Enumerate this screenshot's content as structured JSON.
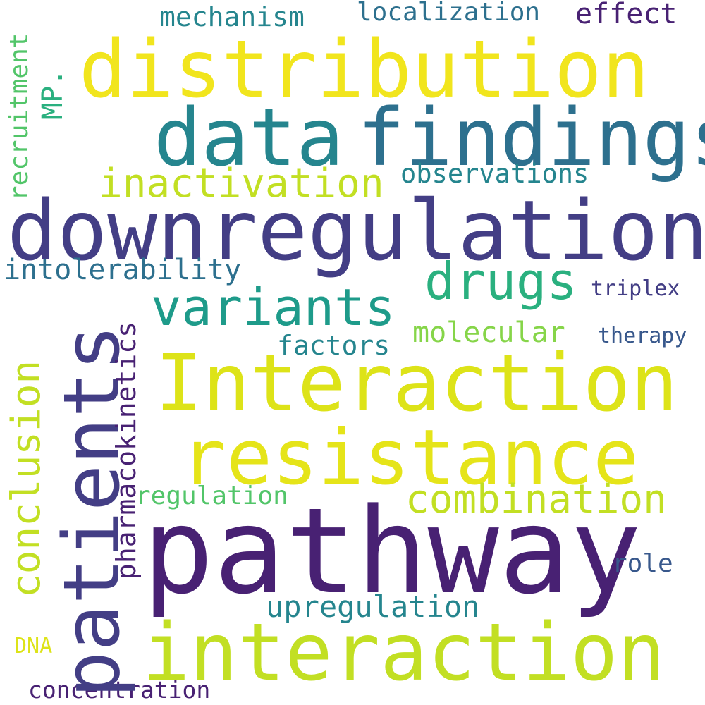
{
  "palette": {
    "yellow": "#f1e51d",
    "lime": "#c2df23",
    "green_light": "#86d549",
    "green": "#52c569",
    "teal_green": "#2ab07f",
    "teal": "#1e9b8a",
    "blue_teal": "#25858e",
    "blue": "#2d708e",
    "blue_dark": "#38588c",
    "indigo": "#433e85",
    "purple": "#482173"
  },
  "words": {
    "distribution": "distribution",
    "data": "data",
    "findings": "findings",
    "downregulation": "downregulation",
    "Interaction": "Interaction",
    "pathway": "pathway",
    "interaction": "interaction",
    "resistance": "resistance",
    "patients": "patients",
    "variants": "variants",
    "drugs": "drugs",
    "inactivation": "inactivation",
    "combination": "combination",
    "conclusion": "conclusion",
    "upregulation": "upregulation",
    "pharmacokinetics": "pharmacokinetics",
    "observations": "observations",
    "intolerability": "intolerability",
    "molecular": "molecular",
    "factors": "factors",
    "mechanism": "mechanism",
    "localization": "localization",
    "effect": "effect",
    "regulation": "regulation",
    "role": "role",
    "therapy": "therapy",
    "triplex": "triplex",
    "recruitment": "recruitment",
    "MP": "MP.",
    "concentration": "concentration",
    "DNA": "DNA"
  }
}
